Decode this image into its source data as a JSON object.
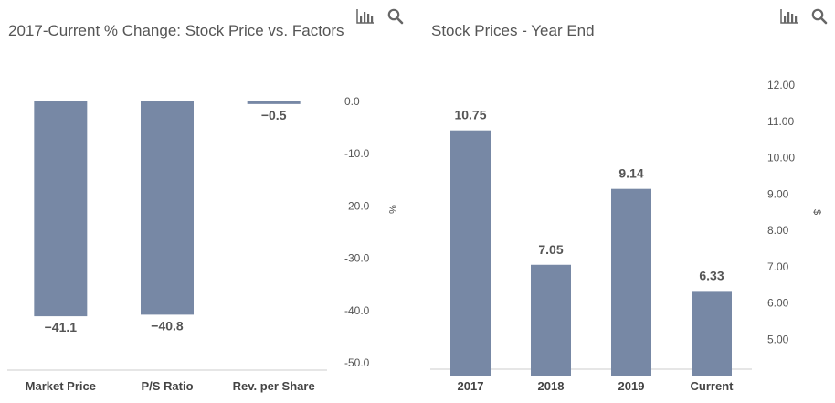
{
  "toolbar": {
    "chart_icon": "bar-chart-icon",
    "search_icon": "search-icon"
  },
  "colors": {
    "bar": "#7788a5",
    "title": "#555555",
    "axis": "#cccccc"
  },
  "chart_data": [
    {
      "type": "bar",
      "title": "2017-Current % Change: Stock Price vs. Factors",
      "categories": [
        "Market Price",
        "P/S Ratio",
        "Rev. per Share"
      ],
      "values": [
        -41.1,
        -40.8,
        -0.5
      ],
      "data_labels": [
        "−41.1",
        "−40.8",
        "−0.5"
      ],
      "ylabel": "%",
      "y_axis_side": "right",
      "ylim": [
        -50,
        0
      ],
      "yticks": [
        0,
        -10,
        -20,
        -30,
        -40,
        -50
      ],
      "ytick_labels": [
        "0.0",
        "-10.0",
        "-20.0",
        "-30.0",
        "-40.0",
        "-50.0"
      ],
      "grid": false,
      "legend": "none"
    },
    {
      "type": "bar",
      "title": "Stock Prices - Year End",
      "categories": [
        "2017",
        "2018",
        "2019",
        "Current"
      ],
      "values": [
        10.75,
        7.05,
        9.14,
        6.33
      ],
      "data_labels": [
        "10.75",
        "7.05",
        "9.14",
        "6.33"
      ],
      "ylabel": "$",
      "y_axis_side": "right",
      "ylim": [
        4,
        12
      ],
      "yticks": [
        5,
        6,
        7,
        8,
        9,
        10,
        11,
        12
      ],
      "ytick_labels": [
        "5.00",
        "6.00",
        "7.00",
        "8.00",
        "9.00",
        "10.00",
        "11.00",
        "12.00"
      ],
      "grid": false,
      "legend": "none"
    }
  ]
}
